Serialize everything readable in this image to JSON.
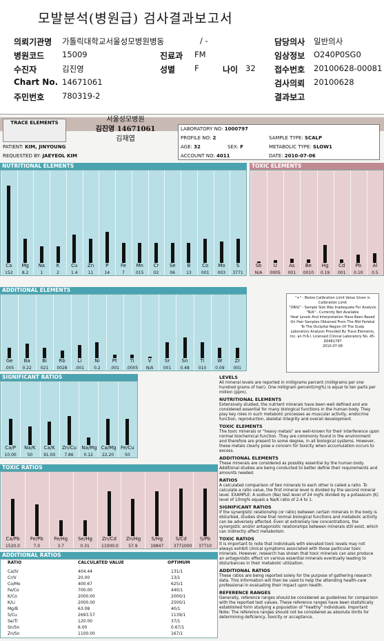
{
  "title": "모발분석(병원급) 검사결과보고서",
  "header": {
    "rows": [
      [
        {
          "k": "의뢰기관명",
          "v": "가톨릭대학교서울성모병원병동"
        },
        {
          "k": "",
          "v": "/ -"
        },
        {
          "k": "담당의사",
          "v": "일반의사"
        }
      ],
      [
        {
          "k": "병원코드",
          "v": "15009"
        },
        {
          "k": "진료과",
          "v": "FM"
        },
        {
          "k": "임상정보",
          "v": "O240P0SG0"
        }
      ],
      [
        {
          "k": "수진자",
          "v": "김진영"
        },
        {
          "k": "성별",
          "v": "F"
        },
        {
          "k": "나이",
          "v": "32"
        },
        {
          "k": "접수번호",
          "v": "20100628-00081"
        }
      ],
      [
        {
          "k": "Chart No.",
          "v": "14671061"
        },
        {
          "k": "검사의뢰",
          "v": "20100628"
        }
      ],
      [
        {
          "k": "주민번호",
          "v": "780319-2"
        },
        {
          "k": "결과보고",
          "v": ""
        }
      ]
    ]
  },
  "report": {
    "stamp": [
      "서울성모병원",
      "김진영 14671061",
      "김재엽"
    ],
    "logo": "TRACE ELEMENTS",
    "lab_no": "1000797",
    "profile_no": "2",
    "sample_type": "SCALP",
    "patient": "KIM, JINYOUNG",
    "age": "32",
    "sex": "F",
    "metabolic_type": "SLOW1",
    "requested_by": "JAEYEOL KIM",
    "account_no": "4011",
    "date": "2010-07-06"
  },
  "sections": {
    "nutritional": "NUTRITIONAL ELEMENTS",
    "toxic": "TOXIC ELEMENTS",
    "additional": "ADDITIONAL ELEMENTS",
    "sig_ratios": "SIGNIFICANT RATIOS",
    "toxic_ratios": "TOXIC RATIOS",
    "add_ratios": "ADDITIONAL RATIOS"
  },
  "nutritional": {
    "labels": [
      "Ca",
      "Mg",
      "Na",
      "K",
      "Cu",
      "Zn",
      "P",
      "Fe",
      "Mn",
      "Cr",
      "Se",
      "B",
      "Co",
      "Mo",
      "S"
    ],
    "values": [
      "152",
      "8.2",
      "1",
      "2",
      "1.4",
      "11",
      "14",
      "7",
      "015",
      "02",
      "06",
      "13",
      "001",
      "003",
      "3771"
    ],
    "levels": [
      0.95,
      0.3,
      0.2,
      0.2,
      0.35,
      0.3,
      0.38,
      0.25,
      0.25,
      0.25,
      0.25,
      0.25,
      0.3,
      0.26,
      0.3
    ]
  },
  "toxic": {
    "labels": [
      "Sb",
      "U",
      "As",
      "Be",
      "Hg",
      "Cd",
      "Pb",
      "Al"
    ],
    "values": [
      "N/A",
      "0005",
      "001",
      "0010",
      "0.19",
      "001",
      "0.10",
      "0.5"
    ],
    "levels": [
      0.02,
      0.03,
      0.05,
      0.04,
      0.22,
      0.04,
      0.1,
      0.12
    ]
  },
  "additional": {
    "labels": [
      "Ge",
      "Ba",
      "Bi",
      "Rb",
      "Li",
      "Ni",
      "Pt",
      "Ti",
      "V",
      "Sr",
      "Sn",
      "Ti",
      "W",
      "Zr"
    ],
    "values": [
      ".005",
      "0.22",
      "021",
      "0028",
      ".001",
      "0.2",
      ".001",
      ".0005",
      "N/A",
      "001",
      "0.48",
      "010",
      "0.09",
      "001"
    ],
    "levels": [
      0.2,
      0.28,
      0.2,
      0.15,
      0.25,
      0.3,
      0.06,
      0.06,
      0.02,
      0.3,
      0.4,
      0.3,
      0.2,
      0.2
    ]
  },
  "sig_ratios": {
    "labels": [
      "Ca/P",
      "Na/K",
      "Ca/K",
      "Zn/Cu",
      "Na/Mg",
      "Ca/Mg",
      "Fe/Cu"
    ],
    "values": [
      "10.00",
      "50",
      "91.00",
      "7.86",
      "0.12",
      "22.20",
      "50"
    ],
    "levels": [
      0.5,
      0.35,
      0.45,
      0.55,
      0.15,
      0.5,
      0.5
    ]
  },
  "toxic_ratios": {
    "labels": [
      "Ca/Pb",
      "Fe/Pb",
      "Fe/Hg",
      "Se/Hg",
      "Zn/Cd",
      "Zn/Hg",
      "S/Hg",
      "S/Cd",
      "S/Pb"
    ],
    "values": [
      "1520.0",
      "7.0",
      "3.7",
      "0.31",
      "11000.0",
      "57.9",
      "19847",
      "3771000",
      "37710"
    ],
    "levels": [
      0.7,
      0.6,
      0.3,
      0.3,
      0.85,
      0.7,
      0.85,
      0.9,
      0.9
    ]
  },
  "ratio_table": {
    "headers": [
      "RATIO",
      "CALCULATED VALUE",
      "OPTIMUM"
    ],
    "sub": "Current    Previous",
    "rows": [
      [
        "Ca/Sr",
        "404.44",
        "131/1"
      ],
      [
        "Cr/V",
        "20.00",
        "13/1"
      ],
      [
        "Co/Mo",
        "400.67",
        "625/1"
      ],
      [
        "Fe/Co",
        "700.00",
        "440/1"
      ],
      [
        "K/Co",
        "2000.00",
        "2000/1"
      ],
      [
        "K/Li",
        "2000.00",
        "2500/1"
      ],
      [
        "Mg/B",
        "63.08",
        "40/1"
      ],
      [
        "S/Cu",
        "2693.57",
        "1139/1"
      ],
      [
        "Se/Ti",
        "120.00",
        "37/1"
      ],
      [
        "Sn/Sn",
        "6.00",
        "0.67/1"
      ],
      [
        "Zn/Sn",
        "1100.00",
        "167/1"
      ]
    ]
  },
  "legend": [
    "\"+\" - Below Calibration Limit Value Given is Calibration Limit",
    "\"ORIG\" - Sample Size Was Inadequate For Analysis",
    "\"N/A\" - Currently Not Available",
    "Heat Levels And Interpretation Have Been Based On Hair Samples Obtained From The Mid Parietal To The Occipital Region Of The Scalp",
    "Laboratory Analysis Provided By Trace Elements, Inc. an H.R.I. Licensed Clinical Laboratory No. 45-D0481787",
    "2010-07-06"
  ],
  "text": [
    {
      "h": "LEVELS",
      "p": "All mineral levels are reported in milligrams percent (milligrams per one hundred grams of hair). One milligram percent(mg%) is equal to ten parts per million (ppm)."
    },
    {
      "h": "NUTRITIONAL ELEMENTS",
      "p": "Extensively studied, the nutrient minerals have been well defined and are considered essential for many biological functions in the human body. They play key roles in such metabolic processes as muscular activity, endocrine function, reproduction, skeletal integrity and overall development."
    },
    {
      "h": "TOXIC ELEMENTS",
      "p": "The toxic minerals or \"heavy metals\" are well-known for their interference upon normal biochemical function. They are commonly found in the environment and therefore are present to some degree, in all biological systems. However, these metals clearly pose a concern for toxicity when accumulation occurs to excess."
    },
    {
      "h": "ADDITIONAL ELEMENTS",
      "p": "These minerals are considered as possibly essential by the human body. Additional studies are being conducted to better define their requirements and amounts needed."
    },
    {
      "h": "RATIOS",
      "p": "A calculated comparison of two minerals to each other is called a ratio. To calculate a ratio value, the first mineral level is divided by the second mineral level. EXAMPLE: A sodium (Na) test level of 24 mg% divided by a potassium (K) level of 10mg% equals a Na/K ratio of 2.4 to 1."
    },
    {
      "h": "SIGNIFICANT RATIOS",
      "p": "If the synergistic relationship (or ratio) between certain minerals in the body is disturbed, studies show that normal biological functions and metabolic activity can be adversely affected. Even at extremely low concentrations, the synergistic and/or antagonistic relationships between minerals still exist, which can indirectly affect metabolism."
    },
    {
      "h": "TOXIC RATIOS",
      "p": "It is important to note that individuals with elevated toxic levels may not always exhibit clinical symptoms associated with those particular toxic minerals. However, research has shown that toxic minerals can also produce an antagonistic effect on various essential minerals eventually leading to disturbances in their metabolic utilization."
    },
    {
      "h": "ADDITIONAL RATIOS",
      "p": "These ratios are being reported solely for the purpose of gathering research data. This information will then be used to help the attending health-care professional in evaluating their impact upon health."
    },
    {
      "h": "REFERENCE RANGES",
      "p": "Generally, reference ranges should be considered as guidelines for comparison with the reported test values. These reference ranges have been statistically established form studying a population of \"healthy\" individuals. Important Note: The reference ranges should not be considered as absolute limits for determining deficiency, toxicity or acceptance."
    }
  ]
}
